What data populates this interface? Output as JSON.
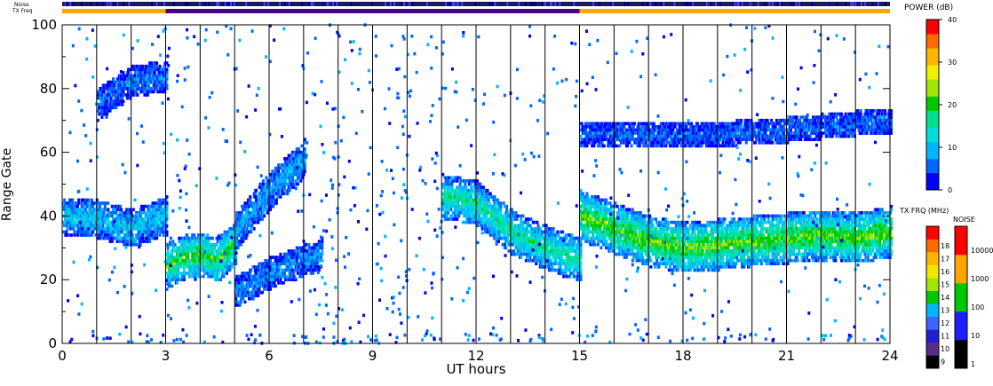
{
  "chart_data": {
    "type": "heatmap",
    "xlabel": "UT hours",
    "ylabel": "Range Gate",
    "xlim": [
      0,
      24
    ],
    "ylim": [
      0,
      100
    ],
    "x_ticks": [
      "0",
      "3",
      "6",
      "9",
      "12",
      "15",
      "18",
      "21",
      "24"
    ],
    "y_ticks": [
      "0",
      "20",
      "40",
      "60",
      "80",
      "100"
    ],
    "grid_hours": [
      1,
      2,
      3,
      4,
      5,
      6,
      7,
      8,
      9,
      10,
      11,
      12,
      13,
      14,
      15,
      16,
      17,
      18,
      19,
      20,
      21,
      22,
      23
    ],
    "bands": [
      {
        "t": [
          0,
          1,
          2,
          3
        ],
        "gate": [
          40,
          39,
          36,
          40
        ],
        "width": 6,
        "power": 10
      },
      {
        "t": [
          3,
          3.5,
          4,
          4.5,
          5
        ],
        "gate": [
          24,
          27,
          28,
          26,
          32
        ],
        "width": 7,
        "power": 20
      },
      {
        "t": [
          5,
          6,
          7
        ],
        "gate": [
          35,
          48,
          58
        ],
        "width": 6,
        "power": 8
      },
      {
        "t": [
          5,
          6,
          7.5
        ],
        "gate": [
          16,
          22,
          28
        ],
        "width": 5,
        "power": 6
      },
      {
        "t": [
          1,
          2,
          3
        ],
        "gate": [
          75,
          82,
          84
        ],
        "width": 5,
        "power": 5
      },
      {
        "t": [
          11,
          12,
          13,
          14,
          15
        ],
        "gate": [
          46,
          44,
          35,
          30,
          26
        ],
        "width": 7,
        "power": 16
      },
      {
        "t": [
          15,
          16,
          17,
          18,
          19,
          20,
          21,
          22,
          23,
          24
        ],
        "gate": [
          40,
          36,
          32,
          30,
          31,
          32,
          33,
          34,
          33,
          35
        ],
        "width": 8,
        "power": 22
      },
      {
        "t": [
          15,
          18,
          21,
          24
        ],
        "gate": [
          66,
          65,
          67,
          70
        ],
        "width": 4,
        "power": 4
      }
    ],
    "top_bars": {
      "noise_label": "Noise",
      "txfreq_label": "TX Freq",
      "txfreq_segments": [
        {
          "from": 0,
          "to": 3,
          "color": "#ffa500"
        },
        {
          "from": 3,
          "to": 15,
          "color": "#4b0082"
        },
        {
          "from": 15,
          "to": 24,
          "color": "#ffa500"
        }
      ]
    },
    "power_scale": {
      "title": "POWER (dB)",
      "ticks": [
        "0",
        "10",
        "20",
        "30",
        "40"
      ],
      "colors": [
        "#0000ff",
        "#0066ff",
        "#00b4ff",
        "#00dcdc",
        "#00e090",
        "#00c800",
        "#a0e600",
        "#f0f000",
        "#ffb400",
        "#ff6a00",
        "#ff0000"
      ]
    },
    "txfreq_scale": {
      "title": "TX FRQ (MHz)",
      "ticks": [
        "9",
        "10",
        "11",
        "12",
        "13",
        "14",
        "15",
        "16",
        "17",
        "18"
      ],
      "colors": [
        "#000000",
        "#5a2d8c",
        "#2020d0",
        "#3c64ff",
        "#00b4ff",
        "#00c800",
        "#a0e600",
        "#f0e600",
        "#ffb400",
        "#ff6a00",
        "#ff0000"
      ]
    },
    "noise_scale": {
      "title": "NOISE",
      "ticks": [
        "1",
        "10",
        "100",
        "1000",
        "10000"
      ],
      "colors": [
        "#000000",
        "#2020ff",
        "#00c800",
        "#ffa500",
        "#ff0000"
      ]
    }
  }
}
